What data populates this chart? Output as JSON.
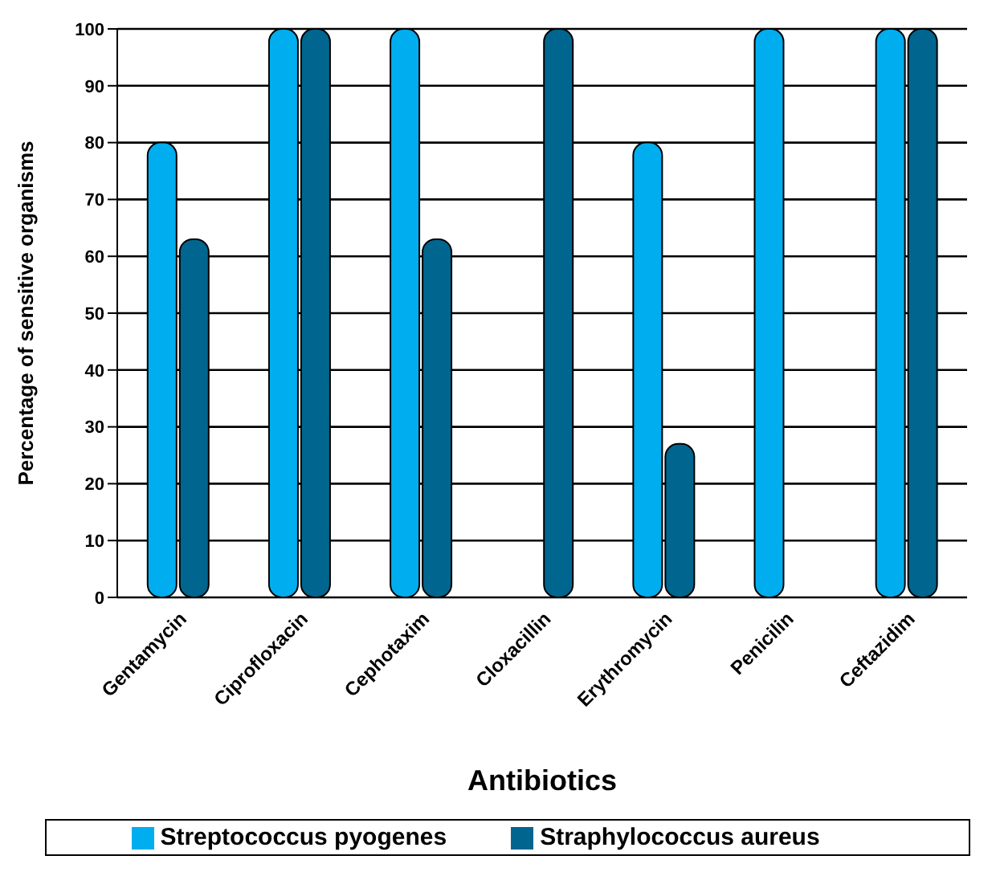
{
  "chart_data": {
    "type": "bar",
    "xlabel": "Antibiotics",
    "ylabel": "Percentage of sensitive organisms",
    "categories": [
      "Gentamycin",
      "Ciprofloxacin",
      "Cephotaxim",
      "Cloxacillin",
      "Erythromycin",
      "Penicilin",
      "Ceftazidim"
    ],
    "series": [
      {
        "name": "Streptococcus pyogenes",
        "color": "#00aeef",
        "values": [
          80,
          100,
          100,
          0,
          80,
          100,
          100
        ]
      },
      {
        "name": "Straphylococcus aureus",
        "color": "#00668f",
        "values": [
          63,
          100,
          63,
          100,
          27,
          0,
          100
        ]
      }
    ],
    "ylim": [
      0,
      100
    ],
    "yticks": [
      0,
      10,
      20,
      30,
      40,
      50,
      60,
      70,
      80,
      90,
      100
    ],
    "grid": "y",
    "legend": "bottom"
  }
}
